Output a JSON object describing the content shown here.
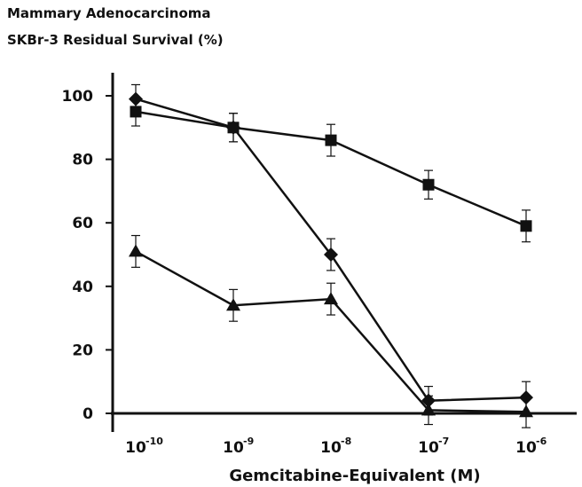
{
  "chart_data": {
    "type": "line",
    "title": "Mammary Adenocarcinoma",
    "subtitle": "SKBr-3 Residual Survival (%)",
    "xlabel": "Gemcitabine-Equivalent (M)",
    "ylabel": "",
    "x_scale": "log",
    "categories": [
      "10^-10",
      "10^-9",
      "10^-8",
      "10^-7",
      "10^-6"
    ],
    "x_tick_bases": [
      "10",
      "10",
      "10",
      "10",
      "10"
    ],
    "x_tick_exponents": [
      "-10",
      "-9",
      "-8",
      "-7",
      "-6"
    ],
    "y_ticks": [
      "0",
      "20",
      "40",
      "60",
      "80",
      "100"
    ],
    "ylim": [
      0,
      100
    ],
    "grid": false,
    "legend": "none",
    "series": [
      {
        "marker": "diamond",
        "values": [
          99,
          90,
          50,
          4,
          5
        ],
        "errors": [
          4.5,
          4.5,
          5,
          4.5,
          5
        ]
      },
      {
        "marker": "square",
        "values": [
          95,
          90,
          86,
          72,
          59
        ],
        "errors": [
          4.5,
          4.5,
          5,
          4.5,
          5
        ]
      },
      {
        "marker": "triangle",
        "values": [
          51,
          34,
          36,
          1,
          0.5
        ],
        "errors": [
          5,
          5,
          5,
          4.5,
          5
        ]
      }
    ],
    "colors": {
      "line": "#111111",
      "marker": "#111111"
    }
  }
}
